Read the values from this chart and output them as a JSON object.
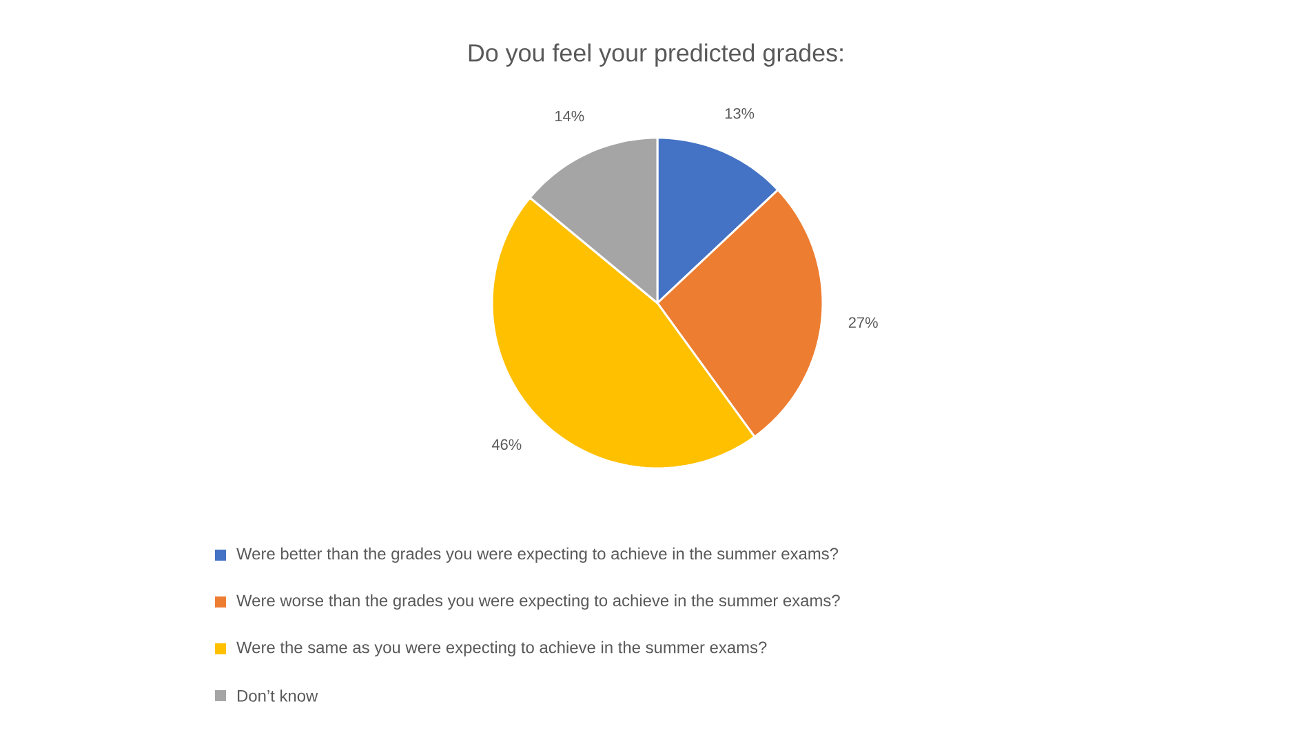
{
  "chart_data": {
    "type": "pie",
    "title": "Do you feel your predicted grades:",
    "categories": [
      "Were better than the grades you were expecting to achieve in the summer exams?",
      "Were worse than the grades you were expecting to achieve in the summer exams?",
      "Were the same as you were expecting to achieve in the summer exams?",
      "Don’t know"
    ],
    "values": [
      13,
      27,
      46,
      14
    ],
    "value_labels": [
      "13%",
      "27%",
      "46%",
      "14%"
    ],
    "colors": [
      "#4472c4",
      "#ed7d31",
      "#ffc000",
      "#a5a5a5"
    ],
    "legend": "bottom"
  }
}
